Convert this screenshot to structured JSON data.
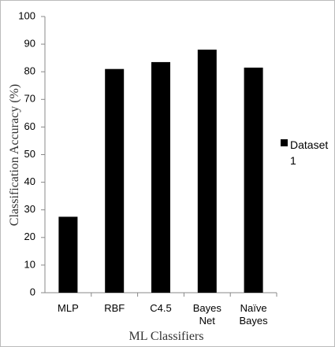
{
  "chart_data": {
    "type": "bar",
    "categories": [
      "MLP",
      "RBF",
      "C4.5",
      "Bayes Net",
      "Naïve Bayes"
    ],
    "series": [
      {
        "name": "Dataset 1",
        "color": "#000000",
        "values": [
          27.5,
          81,
          83.5,
          88,
          81.5
        ]
      }
    ],
    "xlabel": "ML Classifiers",
    "ylabel": "Classification Accuracy (%)",
    "ylim": [
      0,
      100
    ],
    "yticks": [
      0,
      10,
      20,
      30,
      40,
      50,
      60,
      70,
      80,
      90,
      100
    ],
    "grid": false,
    "legend": "right"
  }
}
